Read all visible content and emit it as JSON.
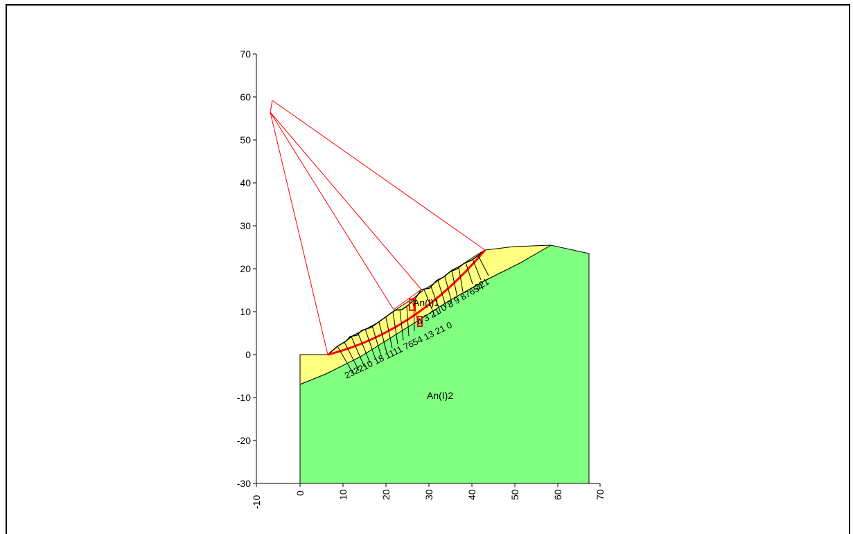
{
  "diagram": {
    "axes": {
      "x": {
        "range": [
          -10,
          70
        ],
        "ticks": [
          "-10",
          "0",
          "10",
          "20",
          "30",
          "40",
          "50",
          "60",
          "70"
        ]
      },
      "y": {
        "range": [
          -30,
          70
        ],
        "ticks": [
          "-30",
          "-20",
          "-10",
          "0",
          "10",
          "20",
          "30",
          "40",
          "50",
          "60",
          "70"
        ]
      }
    },
    "colors": {
      "surface_layer": "#ffff80",
      "base_layer": "#80ff80",
      "slip_circle": "#ff0000",
      "outline": "#000000"
    },
    "layers": {
      "upper_label": "An(I)1",
      "lower_label": "An(I)2"
    },
    "slice_labels": {
      "left_group": "232210 18 1111 7654 13 21 0",
      "middle_group": "4 3 21 0 8 9 87654",
      "right_group": "321"
    }
  }
}
